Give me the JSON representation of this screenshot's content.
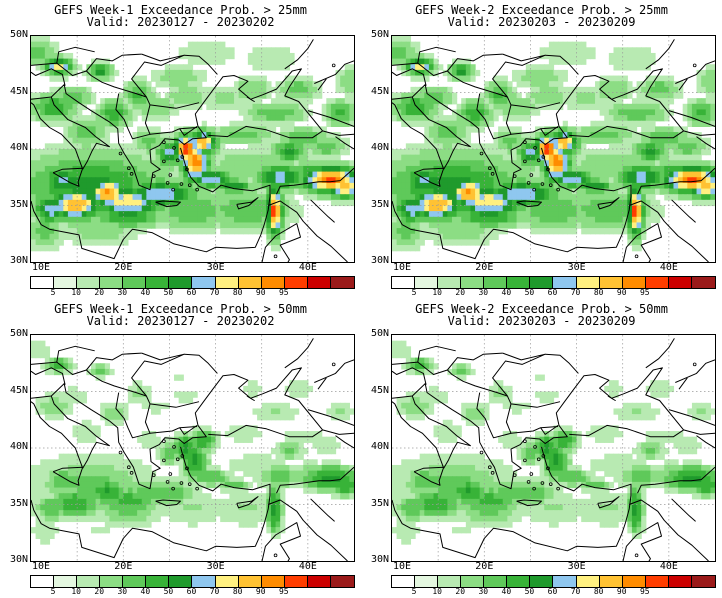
{
  "panels": [
    {
      "title": "GEFS Week-1 Exceedance Prob. > 25mm",
      "valid": "Valid: 20230127 - 20230202",
      "threshold": 25,
      "intensity": 1.0
    },
    {
      "title": "GEFS Week-2 Exceedance Prob. > 25mm",
      "valid": "Valid: 20230203 - 20230209",
      "threshold": 25,
      "intensity": 1.0
    },
    {
      "title": "GEFS Week-1 Exceedance Prob. > 50mm",
      "valid": "Valid: 20230127 - 20230202",
      "threshold": 50,
      "intensity": 0.35
    },
    {
      "title": "GEFS Week-2 Exceedance Prob. > 50mm",
      "valid": "Valid: 20230203 - 20230209",
      "threshold": 50,
      "intensity": 0.35
    }
  ],
  "lat_labels": [
    "50N",
    "45N",
    "40N",
    "35N",
    "30N"
  ],
  "lon_labels": [
    "10E",
    "20E",
    "30E",
    "40E"
  ],
  "colorbar": {
    "labels": [
      "5",
      "10",
      "20",
      "30",
      "40",
      "50",
      "60",
      "70",
      "80",
      "90",
      "95"
    ],
    "colors": [
      "#ffffff",
      "#e4f7e0",
      "#b8eab2",
      "#8cdd84",
      "#5fc95a",
      "#2ea82e",
      "#17882a",
      "#8fc7ef",
      "#fff080",
      "#ffc233",
      "#ff8c00",
      "#ff3d00",
      "#cc0000",
      "#9b1a1a"
    ]
  }
}
